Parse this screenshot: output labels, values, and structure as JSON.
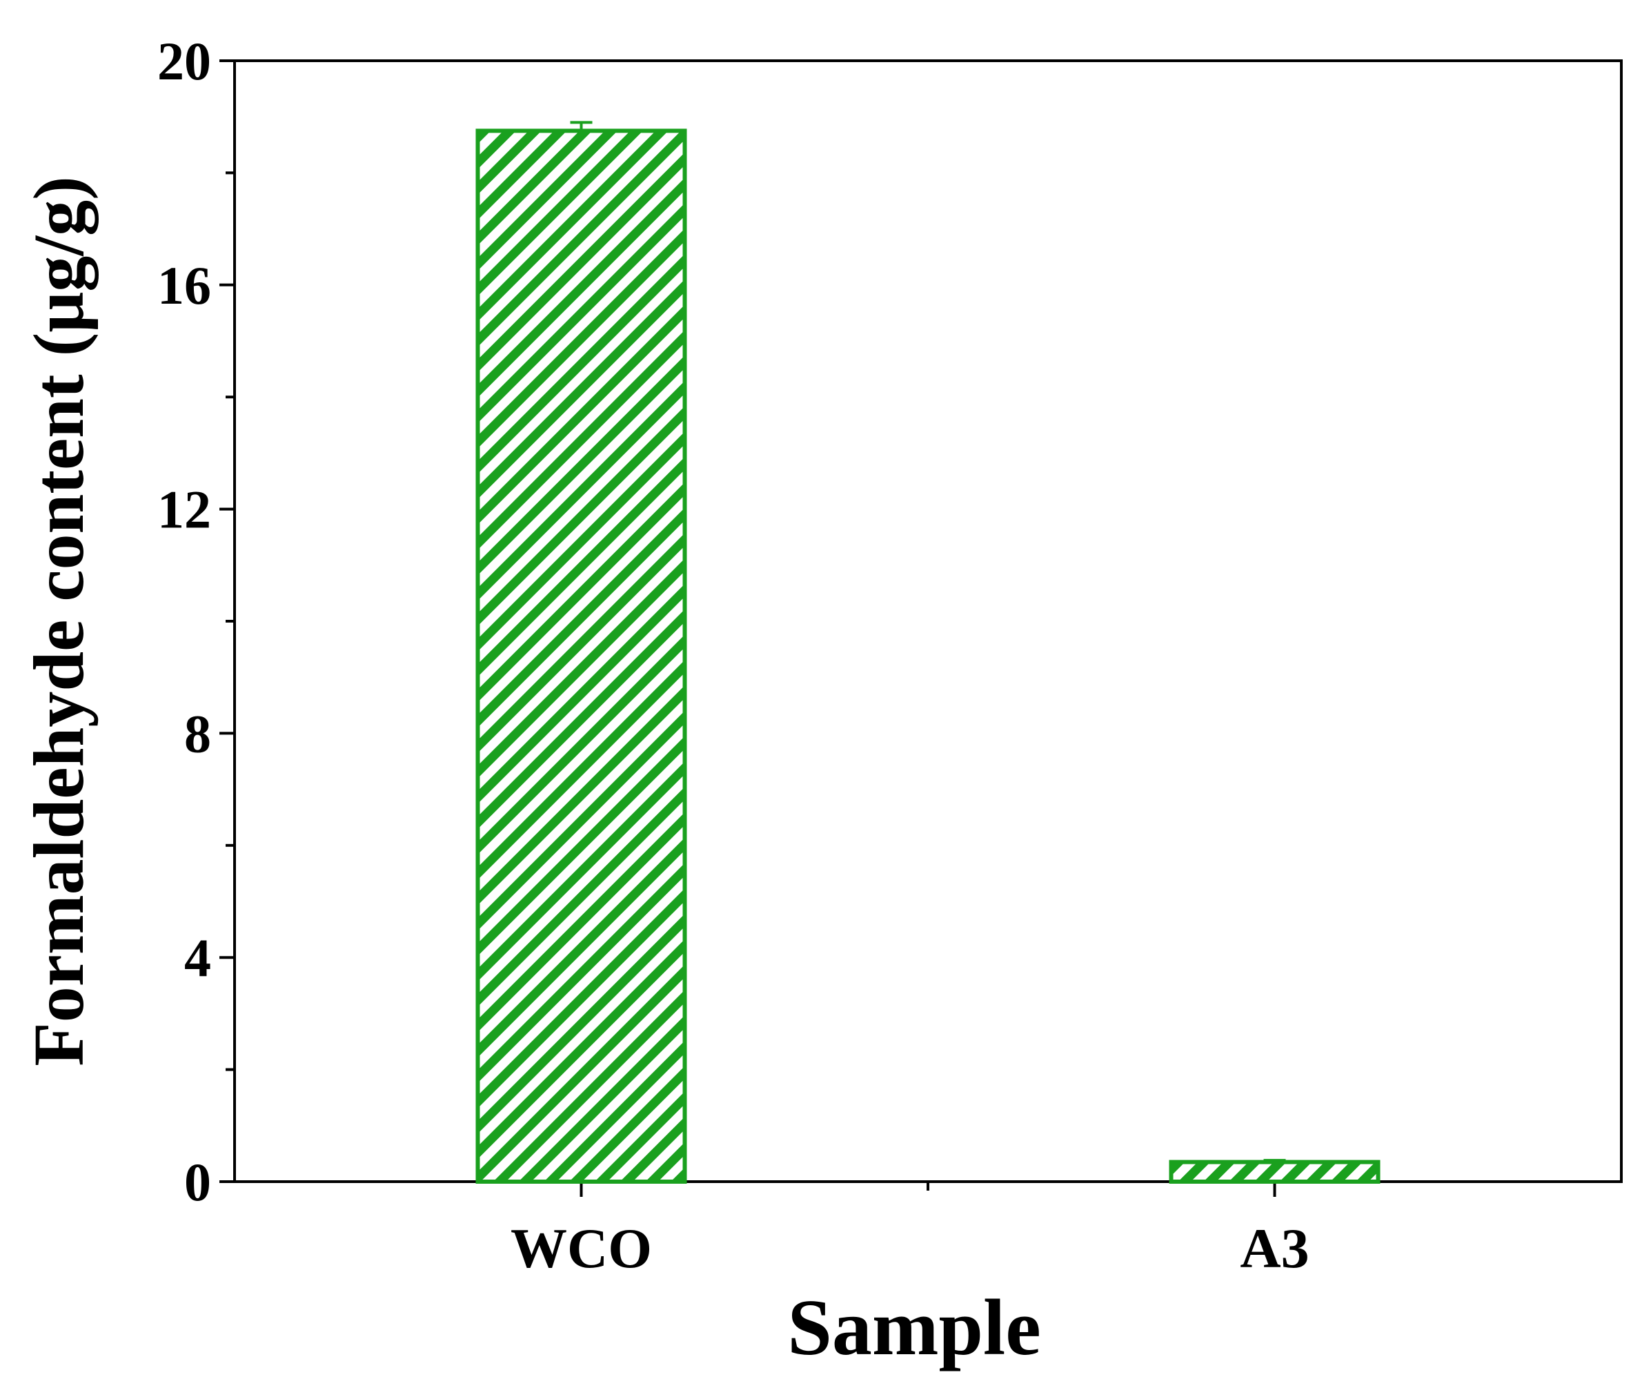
{
  "chart_data": {
    "type": "bar",
    "categories": [
      "WCO",
      "A3"
    ],
    "series": [
      {
        "values": [
          18.75,
          0.35
        ],
        "errors": [
          0.15,
          0.03
        ],
        "color": "#1aa01e",
        "fill_pattern": "diagonal-hatch"
      }
    ],
    "xlabel": "Sample",
    "ylabel": "Formaldehyde content (μg/g)",
    "ylim": [
      0,
      20
    ],
    "yticks_major": [
      0,
      4,
      8,
      12,
      16,
      20
    ],
    "yticks_minor": [
      2,
      6,
      10,
      14,
      18
    ],
    "yticks_labels": [
      "0",
      "4",
      "8",
      "12",
      "16",
      "20"
    ],
    "grid": false,
    "legend": "none",
    "axis_color": "#000000"
  }
}
